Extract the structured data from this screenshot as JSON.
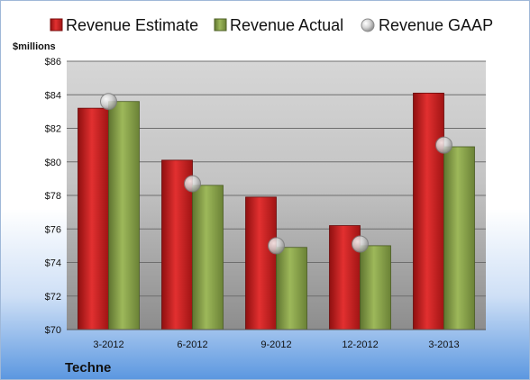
{
  "chart_data": {
    "type": "bar",
    "unit_label": "$millions",
    "company": "Techne",
    "categories": [
      "3-2012",
      "6-2012",
      "9-2012",
      "12-2012",
      "3-2013"
    ],
    "ylim": [
      70,
      86
    ],
    "yticks": [
      70,
      72,
      74,
      76,
      78,
      80,
      82,
      84,
      86
    ],
    "ytick_labels": [
      "$70",
      "$72",
      "$74",
      "$76",
      "$78",
      "$80",
      "$82",
      "$84",
      "$86"
    ],
    "grid": true,
    "legend_position": "top",
    "series": [
      {
        "name": "Revenue Estimate",
        "kind": "bar",
        "color": "#cc1f1f",
        "values": [
          83.2,
          80.1,
          77.9,
          76.2,
          84.1
        ]
      },
      {
        "name": "Revenue Actual",
        "kind": "bar",
        "color": "#8aa24a",
        "values": [
          83.6,
          78.6,
          74.9,
          75.0,
          80.9
        ]
      },
      {
        "name": "Revenue GAAP",
        "kind": "marker",
        "color": "#c8c8c8",
        "values": [
          83.6,
          78.7,
          75.0,
          75.1,
          81.0
        ]
      }
    ]
  }
}
